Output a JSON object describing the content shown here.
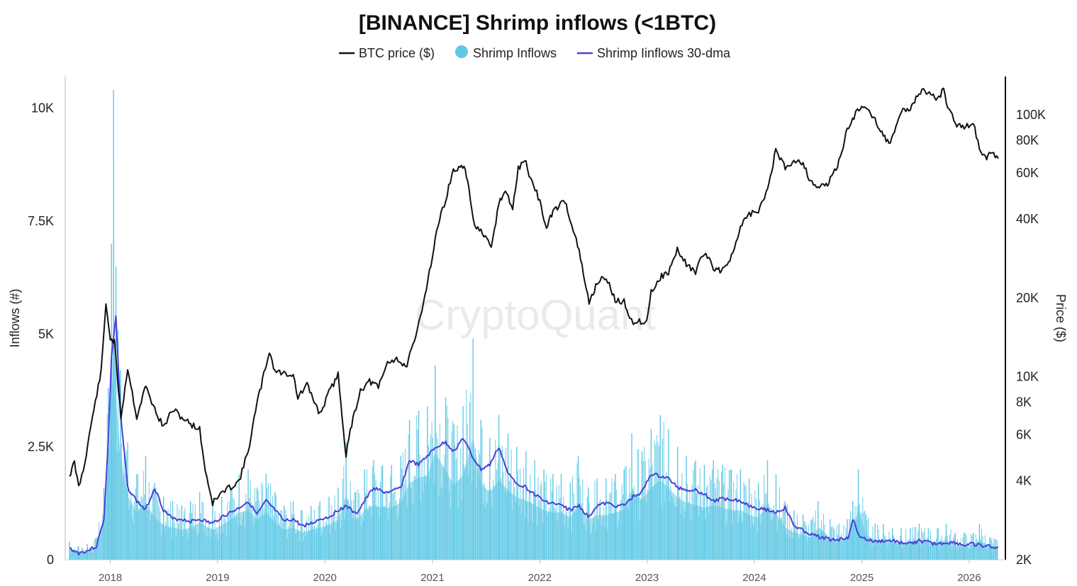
{
  "chart_data": {
    "type": "line",
    "title": "[BINANCE] Shrimp inflows (<1BTC)",
    "watermark": "CryptoQuant",
    "legend": {
      "placement": "top-center",
      "items": [
        {
          "label": "BTC price ($)",
          "color": "#111111",
          "symbol": "line"
        },
        {
          "label": "Shrimp Inflows",
          "color": "#5ec8e5",
          "symbol": "circle"
        },
        {
          "label": "Shrimp Iinflows 30-dma",
          "color": "#4b3fd8",
          "symbol": "line"
        }
      ]
    },
    "x_axis": {
      "type": "date",
      "range": [
        "2017-08-15",
        "2026-04-15"
      ],
      "tick_labels": [
        "2018",
        "2019",
        "2020",
        "2021",
        "2022",
        "2023",
        "2024",
        "2025",
        "2026"
      ],
      "tick_dates": [
        "2018-01-01",
        "2019-01-01",
        "2020-01-01",
        "2021-01-01",
        "2022-01-01",
        "2023-01-01",
        "2024-01-01",
        "2025-01-01",
        "2026-01-01"
      ]
    },
    "y_left": {
      "label": "Inflows (#)",
      "range": [
        0,
        10700
      ],
      "ticks": [
        0,
        2500,
        5000,
        7500,
        10000
      ],
      "tick_labels": [
        "0",
        "2.5K",
        "5K",
        "7.5K",
        "10K"
      ]
    },
    "y_right": {
      "label": "Price ($)",
      "scale": "log",
      "range": [
        2000,
        140000
      ],
      "ticks": [
        2000,
        4000,
        6000,
        8000,
        10000,
        20000,
        40000,
        60000,
        80000,
        100000
      ],
      "tick_labels": [
        "2K",
        "4K",
        "6K",
        "8K",
        "10K",
        "20K",
        "40K",
        "60K",
        "80K",
        "100K"
      ]
    },
    "series": [
      {
        "name": "BTC price ($)",
        "axis": "right",
        "color": "#111111",
        "x": [
          "2017-08-15",
          "2017-09-01",
          "2017-09-15",
          "2017-10-01",
          "2017-11-01",
          "2017-12-01",
          "2017-12-17",
          "2018-01-01",
          "2018-01-15",
          "2018-02-06",
          "2018-03-01",
          "2018-04-01",
          "2018-05-01",
          "2018-06-01",
          "2018-07-01",
          "2018-08-01",
          "2018-09-01",
          "2018-10-01",
          "2018-11-01",
          "2018-11-20",
          "2018-12-15",
          "2019-01-15",
          "2019-02-15",
          "2019-03-15",
          "2019-04-15",
          "2019-05-15",
          "2019-06-26",
          "2019-07-15",
          "2019-08-15",
          "2019-09-15",
          "2019-10-01",
          "2019-11-01",
          "2019-12-15",
          "2020-01-15",
          "2020-02-15",
          "2020-03-13",
          "2020-04-01",
          "2020-05-01",
          "2020-06-01",
          "2020-07-01",
          "2020-08-01",
          "2020-09-01",
          "2020-10-01",
          "2020-11-01",
          "2020-12-01",
          "2021-01-01",
          "2021-01-15",
          "2021-02-15",
          "2021-03-13",
          "2021-04-14",
          "2021-05-01",
          "2021-05-20",
          "2021-06-20",
          "2021-07-20",
          "2021-08-15",
          "2021-09-06",
          "2021-10-01",
          "2021-10-20",
          "2021-11-10",
          "2021-12-01",
          "2022-01-01",
          "2022-01-24",
          "2022-02-15",
          "2022-03-28",
          "2022-04-15",
          "2022-05-15",
          "2022-06-18",
          "2022-07-15",
          "2022-08-15",
          "2022-09-15",
          "2022-10-15",
          "2022-11-09",
          "2022-11-21",
          "2022-12-31",
          "2023-01-15",
          "2023-02-15",
          "2023-03-15",
          "2023-04-14",
          "2023-05-15",
          "2023-06-15",
          "2023-07-15",
          "2023-08-15",
          "2023-09-11",
          "2023-10-15",
          "2023-11-15",
          "2023-12-15",
          "2024-01-15",
          "2024-02-15",
          "2024-03-14",
          "2024-04-15",
          "2024-05-15",
          "2024-06-15",
          "2024-07-05",
          "2024-08-05",
          "2024-09-06",
          "2024-10-15",
          "2024-11-12",
          "2024-12-05",
          "2024-12-17",
          "2025-01-20",
          "2025-02-15",
          "2025-03-15",
          "2025-04-08",
          "2025-05-15",
          "2025-06-15",
          "2025-07-14",
          "2025-08-14",
          "2025-09-15",
          "2025-10-06",
          "2025-10-20",
          "2025-11-15",
          "2025-12-15",
          "2026-01-15",
          "2026-02-05",
          "2026-02-25",
          "2026-03-15",
          "2026-04-10"
        ],
        "values": [
          4200,
          4700,
          3800,
          4400,
          7000,
          10500,
          19000,
          14000,
          13500,
          7000,
          10800,
          7000,
          9200,
          7500,
          6400,
          7500,
          7000,
          6600,
          6300,
          4400,
          3300,
          3600,
          3800,
          4000,
          5200,
          7900,
          12500,
          10500,
          10300,
          10200,
          8300,
          9300,
          7200,
          8700,
          10200,
          5000,
          6600,
          8900,
          9600,
          9100,
          11300,
          11800,
          10800,
          13500,
          19200,
          29000,
          36000,
          48000,
          61000,
          63500,
          57000,
          39000,
          35000,
          31000,
          46000,
          51000,
          44000,
          62000,
          68000,
          57000,
          47000,
          36500,
          43000,
          47000,
          40000,
          30000,
          19000,
          23000,
          24000,
          19500,
          19300,
          16500,
          16000,
          16500,
          21000,
          24000,
          25000,
          30500,
          27000,
          25000,
          30000,
          26000,
          25500,
          28500,
          37000,
          42000,
          42500,
          52000,
          73000,
          63000,
          67000,
          66000,
          57000,
          53000,
          54000,
          66000,
          88000,
          98000,
          106000,
          105000,
          96000,
          84000,
          77000,
          104000,
          105000,
          122000,
          123000,
          115000,
          125000,
          108000,
          93000,
          88000,
          95000,
          73000,
          68000,
          71000,
          68000
        ]
      },
      {
        "name": "Shrimp Iinflows 30-dma",
        "axis": "left",
        "color": "#4b3fd8",
        "x": [
          "2017-08-15",
          "2017-09-15",
          "2017-10-15",
          "2017-11-15",
          "2017-12-10",
          "2017-12-25",
          "2018-01-05",
          "2018-01-20",
          "2018-02-05",
          "2018-03-01",
          "2018-04-01",
          "2018-05-01",
          "2018-06-01",
          "2018-07-01",
          "2018-08-01",
          "2018-09-01",
          "2018-10-01",
          "2018-11-01",
          "2018-12-15",
          "2019-01-15",
          "2019-02-15",
          "2019-03-15",
          "2019-04-15",
          "2019-05-15",
          "2019-06-15",
          "2019-07-15",
          "2019-08-15",
          "2019-09-15",
          "2019-10-15",
          "2019-11-15",
          "2019-12-15",
          "2020-01-15",
          "2020-02-15",
          "2020-03-15",
          "2020-04-15",
          "2020-05-15",
          "2020-06-15",
          "2020-07-15",
          "2020-08-15",
          "2020-09-15",
          "2020-10-15",
          "2020-11-15",
          "2020-12-15",
          "2021-01-15",
          "2021-02-15",
          "2021-03-15",
          "2021-04-15",
          "2021-05-15",
          "2021-06-15",
          "2021-07-15",
          "2021-08-15",
          "2021-09-15",
          "2021-10-15",
          "2021-11-15",
          "2021-12-15",
          "2022-01-15",
          "2022-02-15",
          "2022-03-15",
          "2022-04-15",
          "2022-05-15",
          "2022-06-15",
          "2022-07-15",
          "2022-08-15",
          "2022-09-15",
          "2022-10-15",
          "2022-11-15",
          "2022-12-15",
          "2023-01-15",
          "2023-02-15",
          "2023-03-15",
          "2023-04-15",
          "2023-05-15",
          "2023-06-15",
          "2023-07-15",
          "2023-08-15",
          "2023-09-15",
          "2023-10-15",
          "2023-11-15",
          "2023-12-15",
          "2024-01-15",
          "2024-02-15",
          "2024-03-15",
          "2024-04-15",
          "2024-05-15",
          "2024-06-15",
          "2024-07-15",
          "2024-08-15",
          "2024-09-15",
          "2024-10-15",
          "2024-11-15",
          "2024-12-01",
          "2024-12-20",
          "2025-01-15",
          "2025-02-15",
          "2025-03-15",
          "2025-04-15",
          "2025-05-15",
          "2025-06-15",
          "2025-07-15",
          "2025-08-15",
          "2025-09-15",
          "2025-10-15",
          "2025-11-15",
          "2025-12-15",
          "2026-01-15",
          "2026-02-15",
          "2026-03-15",
          "2026-04-10"
        ],
        "values": [
          250,
          150,
          200,
          300,
          900,
          2600,
          4500,
          5400,
          3200,
          1600,
          1300,
          1100,
          1600,
          1100,
          900,
          900,
          850,
          900,
          800,
          950,
          1050,
          1150,
          1300,
          1000,
          1300,
          1100,
          850,
          900,
          750,
          800,
          900,
          950,
          1100,
          1200,
          1000,
          1300,
          1600,
          1500,
          1500,
          1600,
          2200,
          2100,
          2300,
          2500,
          2600,
          2400,
          2700,
          2300,
          2000,
          2100,
          2500,
          1900,
          1700,
          1600,
          1450,
          1300,
          1250,
          1200,
          1100,
          1200,
          950,
          1200,
          1250,
          1200,
          1200,
          1400,
          1500,
          1900,
          1850,
          1800,
          1600,
          1550,
          1550,
          1450,
          1300,
          1350,
          1350,
          1300,
          1200,
          1150,
          1100,
          1050,
          1150,
          750,
          650,
          550,
          500,
          450,
          450,
          500,
          900,
          550,
          450,
          400,
          420,
          420,
          380,
          350,
          420,
          380,
          350,
          380,
          380,
          320,
          350,
          300,
          300,
          270
        ]
      },
      {
        "name": "Shrimp Inflows",
        "axis": "left",
        "color": "#5ec8e5",
        "x": [
          "2017-08-15",
          "2017-09-15",
          "2017-10-15",
          "2017-11-15",
          "2017-12-10",
          "2017-12-25",
          "2018-01-05",
          "2018-01-12",
          "2018-01-20",
          "2018-02-05",
          "2018-03-01",
          "2018-04-01",
          "2018-05-01",
          "2018-06-01",
          "2018-07-01",
          "2018-08-01",
          "2018-09-01",
          "2018-10-01",
          "2018-11-01",
          "2018-12-15",
          "2019-01-15",
          "2019-02-15",
          "2019-03-15",
          "2019-04-15",
          "2019-05-15",
          "2019-06-15",
          "2019-07-15",
          "2019-08-15",
          "2019-09-15",
          "2019-10-15",
          "2019-11-15",
          "2019-12-15",
          "2020-01-15",
          "2020-02-15",
          "2020-03-13",
          "2020-04-15",
          "2020-05-15",
          "2020-06-15",
          "2020-07-15",
          "2020-08-15",
          "2020-09-15",
          "2020-10-15",
          "2020-11-15",
          "2020-12-15",
          "2021-01-10",
          "2021-02-15",
          "2021-03-15",
          "2021-04-15",
          "2021-05-19",
          "2021-06-15",
          "2021-07-15",
          "2021-08-15",
          "2021-09-15",
          "2021-10-15",
          "2021-11-15",
          "2021-12-15",
          "2022-01-15",
          "2022-02-15",
          "2022-03-15",
          "2022-04-15",
          "2022-05-12",
          "2022-06-15",
          "2022-07-15",
          "2022-08-15",
          "2022-09-15",
          "2022-10-15",
          "2022-11-10",
          "2022-12-15",
          "2023-01-15",
          "2023-02-15",
          "2023-03-15",
          "2023-04-15",
          "2023-05-15",
          "2023-06-15",
          "2023-07-15",
          "2023-08-15",
          "2023-09-15",
          "2023-10-15",
          "2023-11-15",
          "2023-12-15",
          "2024-01-15",
          "2024-02-15",
          "2024-03-15",
          "2024-04-15",
          "2024-05-15",
          "2024-06-15",
          "2024-07-15",
          "2024-08-05",
          "2024-09-15",
          "2024-10-15",
          "2024-11-12",
          "2024-12-01",
          "2024-12-20",
          "2025-01-15",
          "2025-02-15",
          "2025-03-15",
          "2025-04-15",
          "2025-05-15",
          "2025-06-15",
          "2025-07-15",
          "2025-08-15",
          "2025-09-15",
          "2025-10-15",
          "2025-11-15",
          "2025-12-15",
          "2026-01-15",
          "2026-02-05",
          "2026-03-15",
          "2026-04-10"
        ],
        "values": [
          400,
          300,
          350,
          500,
          1600,
          3800,
          7000,
          10400,
          6500,
          4200,
          2600,
          1900,
          2300,
          1700,
          1400,
          1300,
          1200,
          1300,
          1500,
          1200,
          1400,
          1600,
          1900,
          2000,
          1600,
          1900,
          1500,
          1200,
          1300,
          1100,
          1200,
          1300,
          1400,
          1600,
          2600,
          1500,
          2000,
          2200,
          2100,
          2100,
          2300,
          3100,
          3300,
          3400,
          4300,
          3600,
          3000,
          3400,
          4900,
          3100,
          2700,
          3200,
          2800,
          2500,
          2400,
          2200,
          2000,
          1900,
          1900,
          1700,
          2300,
          1600,
          1800,
          1800,
          1900,
          2000,
          2800,
          2400,
          2900,
          3200,
          2900,
          2500,
          2300,
          2200,
          2100,
          2200,
          2100,
          2000,
          2000,
          1800,
          1700,
          2200,
          1900,
          1300,
          1100,
          1000,
          900,
          1300,
          900,
          800,
          900,
          1300,
          2000,
          1000,
          800,
          800,
          700,
          700,
          700,
          800,
          700,
          700,
          800,
          600,
          600,
          600,
          800,
          500,
          500
        ]
      }
    ],
    "grid": false
  }
}
